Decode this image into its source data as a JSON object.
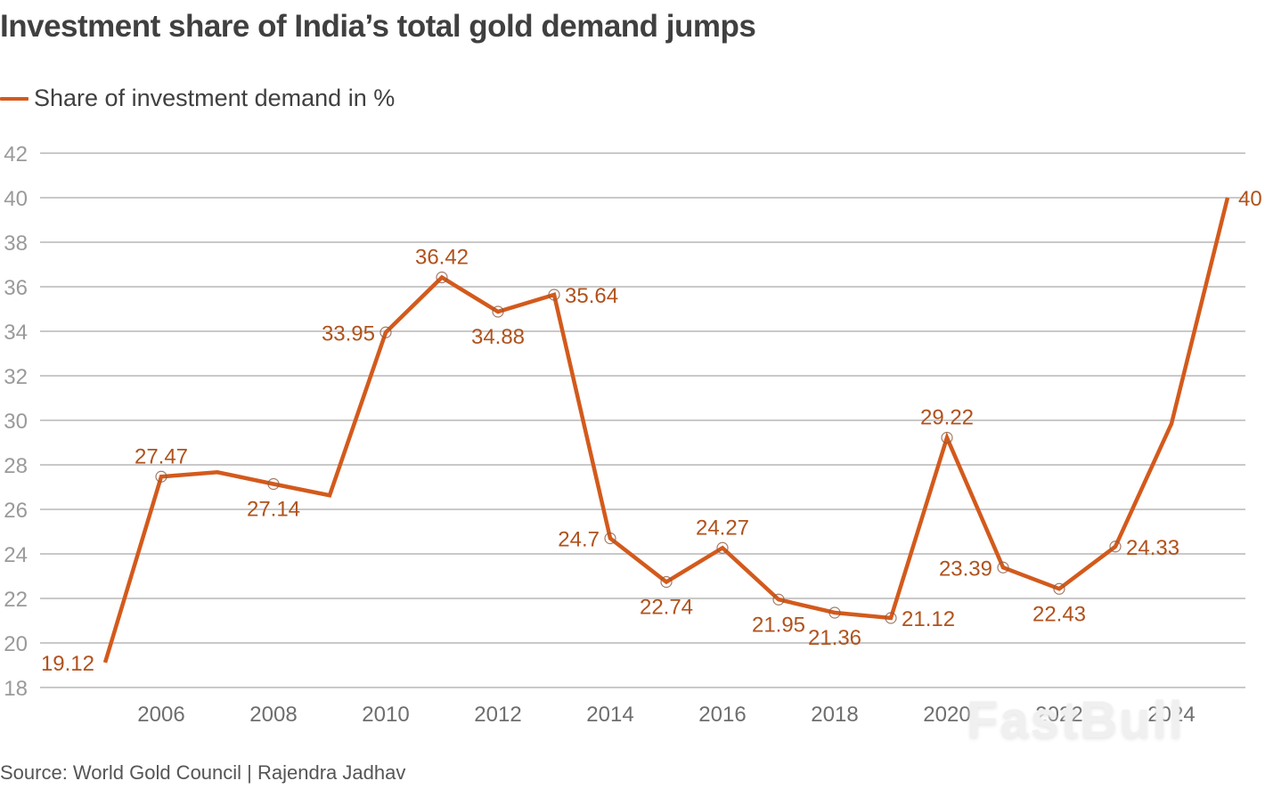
{
  "header": {
    "title": "Investment share of India’s total gold demand jumps"
  },
  "legend": {
    "label": "Share of investment demand in %",
    "color": "#d35a1c"
  },
  "footer": {
    "source": "Source: World Gold Council | Rajendra Jadhav"
  },
  "watermark": "FastBull",
  "chart_data": {
    "type": "line",
    "title": "Investment share of India’s total gold demand jumps",
    "xlabel": "",
    "ylabel": "",
    "ylim": [
      18,
      42
    ],
    "yticks": [
      18,
      20,
      22,
      24,
      26,
      28,
      30,
      32,
      34,
      36,
      38,
      40,
      42
    ],
    "xlim": [
      2005,
      2025
    ],
    "xticks": [
      2006,
      2008,
      2010,
      2012,
      2014,
      2016,
      2018,
      2020,
      2022,
      2024
    ],
    "grid": true,
    "legend_position": "top-left",
    "series": [
      {
        "name": "Share of investment demand in %",
        "color": "#d35a1c",
        "x": [
          2005,
          2006,
          2007,
          2008,
          2009,
          2010,
          2011,
          2012,
          2013,
          2014,
          2015,
          2016,
          2017,
          2018,
          2019,
          2020,
          2021,
          2022,
          2023,
          2024,
          2025
        ],
        "values": [
          19.12,
          27.47,
          27.67,
          27.14,
          26.63,
          33.95,
          36.42,
          34.88,
          35.64,
          24.7,
          22.74,
          24.27,
          21.95,
          21.36,
          21.12,
          29.22,
          23.39,
          22.43,
          24.33,
          29.85,
          40
        ],
        "markers": [
          false,
          true,
          false,
          true,
          false,
          true,
          true,
          true,
          true,
          true,
          true,
          true,
          true,
          true,
          true,
          true,
          true,
          true,
          true,
          false,
          false
        ],
        "labels": [
          "19.12",
          "27.47",
          "",
          "27.14",
          "",
          "33.95",
          "36.42",
          "34.88",
          "35.64",
          "24.7",
          "22.74",
          "24.27",
          "21.95",
          "21.36",
          "21.12",
          "29.22",
          "23.39",
          "22.43",
          "24.33",
          "",
          "40"
        ],
        "label_positions": [
          "left",
          "above",
          "",
          "below",
          "",
          "left",
          "above",
          "below",
          "right",
          "left",
          "below",
          "above",
          "below",
          "below",
          "right",
          "above",
          "left",
          "below",
          "right",
          "",
          "right"
        ]
      }
    ]
  }
}
